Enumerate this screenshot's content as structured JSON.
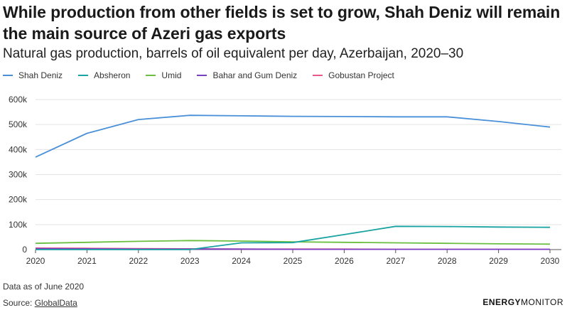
{
  "header": {
    "title": "While production from other fields is set to grow, Shah Deniz will remain the main source of Azeri gas exports",
    "subtitle": "Natural gas production, barrels of oil equivalent per day, Azerbaijan, 2020–30"
  },
  "footer": {
    "note": "Data as of June 2020",
    "source_prefix": "Source: ",
    "source_link": "GlobalData",
    "brand_bold": "ENERGY",
    "brand_light": "MONITOR"
  },
  "chart_data": {
    "type": "line",
    "title": "While production from other fields is set to grow, Shah Deniz will remain the main source of Azeri gas exports",
    "subtitle": "Natural gas production, barrels of oil equivalent per day, Azerbaijan, 2020–30",
    "xlabel": "",
    "ylabel": "",
    "x": [
      2020,
      2021,
      2022,
      2023,
      2024,
      2025,
      2026,
      2027,
      2028,
      2029,
      2030
    ],
    "x_tick_labels": [
      "2020",
      "2021",
      "2022",
      "2023",
      "2024",
      "2025",
      "2026",
      "2027",
      "2028",
      "2029",
      "2030"
    ],
    "ylim": [
      0,
      600000
    ],
    "y_ticks": [
      0,
      100000,
      200000,
      300000,
      400000,
      500000,
      600000
    ],
    "y_tick_labels": [
      "0",
      "100k",
      "200k",
      "300k",
      "400k",
      "500k",
      "600k"
    ],
    "grid": true,
    "legend_position": "top-left",
    "series": [
      {
        "name": "Shah Deniz",
        "color": "#4a90d9",
        "values": [
          370000,
          465000,
          520000,
          537000,
          535000,
          533000,
          532000,
          531000,
          531000,
          512000,
          490000
        ]
      },
      {
        "name": "Absheron",
        "color": "#1aa3a3",
        "values": [
          0,
          0,
          0,
          0,
          27000,
          28000,
          60000,
          93000,
          92000,
          90000,
          89000
        ]
      },
      {
        "name": "Umid",
        "color": "#6abf40",
        "values": [
          25000,
          29000,
          33000,
          36000,
          34000,
          31000,
          29000,
          27000,
          25000,
          23000,
          22000
        ]
      },
      {
        "name": "Bahar and Gum Deniz",
        "color": "#7b3fc4",
        "values": [
          4000,
          3000,
          2000,
          2000,
          2000,
          1000,
          1000,
          1000,
          1000,
          1000,
          1000
        ]
      },
      {
        "name": "Gobustan Project",
        "color": "#e8588a",
        "values": [
          6000,
          5000,
          4000,
          3000,
          2000,
          2000,
          2000,
          1000,
          1000,
          1000,
          1000
        ]
      }
    ]
  }
}
